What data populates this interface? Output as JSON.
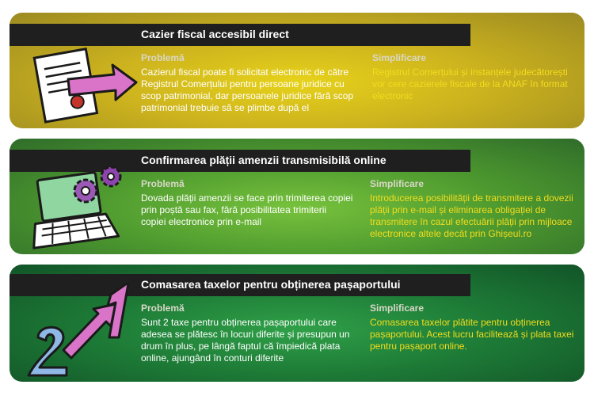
{
  "cards": [
    {
      "title": "Cazier fiscal accesibil direct",
      "problem_label": "Problemă",
      "problem_lines": [
        "Cazierul fiscal poate fi solicitat electronic de către",
        "Registrul Comerțului pentru persoane juridice cu",
        "scop patrimonial, dar persoanele juridice fără scop",
        "patrimonial trebuie să se plimbe după el"
      ],
      "solution_label": "Simplificare",
      "solution_lines": [
        "Registrul Comerțului și instanțele judecătorești",
        "vor cere cazierele fiscale de la ANAF în format",
        "electronic"
      ],
      "icon": "document-arrow-icon"
    },
    {
      "title": "Confirmarea plății amenzii transmisibilă online",
      "problem_label": "Problemă",
      "problem_lines": [
        "Dovada plății amenzii se face prin trimiterea copiei",
        "prin poștă sau fax, fără posibilitatea trimiterii",
        "copiei electronice prin e-mail"
      ],
      "solution_label": "Simplificare",
      "solution_lines": [
        "Introducerea posibilității de transmitere a dovezii",
        "plății prin e-mail și eliminarea obligației de",
        "transmitere în cazul efectuării plății  prin mijloace",
        "electronice altele decât prin Ghișeul.ro"
      ],
      "icon": "laptop-gears-icon"
    },
    {
      "title": "Comasarea taxelor pentru obținerea pașaportului",
      "problem_label": "Problemă",
      "problem_lines": [
        "Sunt 2 taxe pentru obținerea pașaportului care",
        "adesea se plătesc în locuri diferite și presupun un",
        "drum în plus, pe lângă faptul că împiedică plata",
        "online, ajungând în conturi diferite"
      ],
      "solution_label": "Simplificare",
      "solution_lines": [
        "Comasarea taxelor plătite pentru obținerea",
        "pașaportului. Acest lucru facilitează și plata taxei",
        "pentru pașaport online."
      ],
      "icon": "two-to-one-arrow-icon"
    }
  ]
}
